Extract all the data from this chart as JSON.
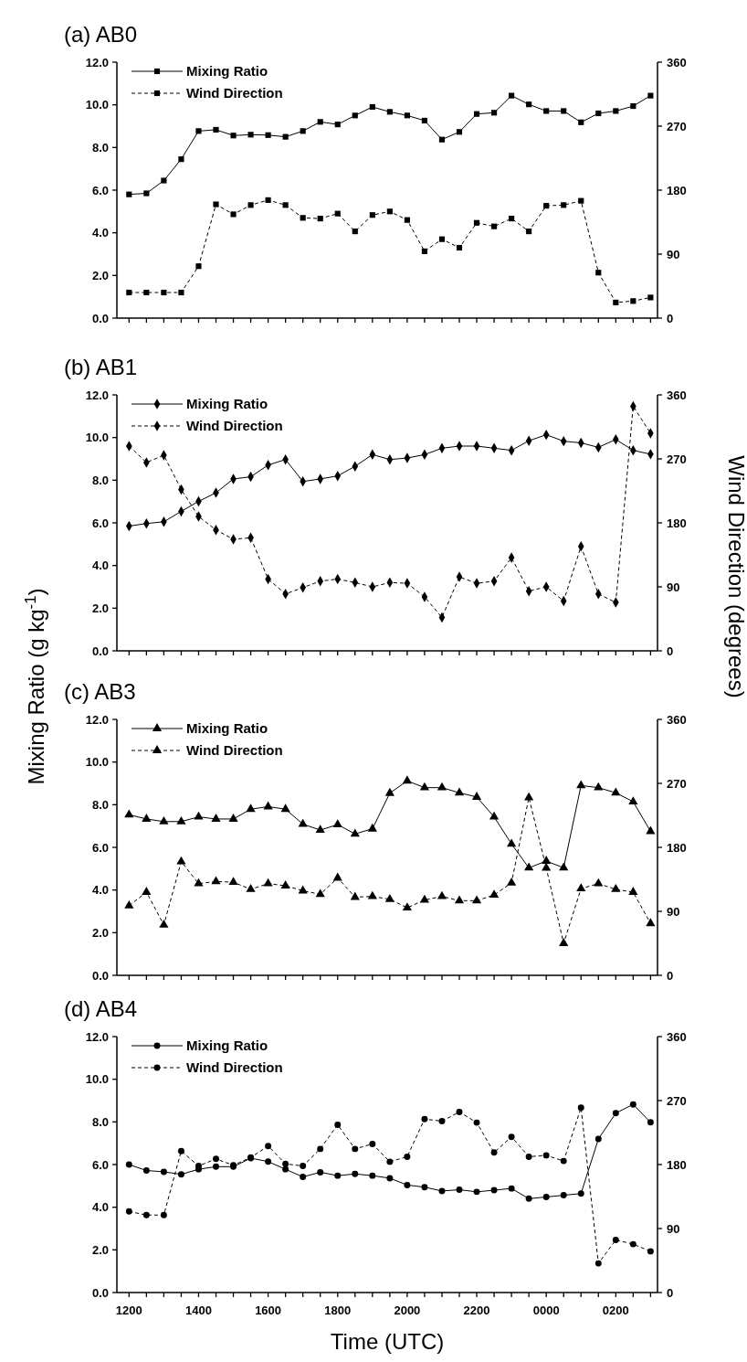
{
  "chart_data": [
    {
      "type": "line",
      "title": "(a) AB0",
      "marker": "square",
      "legend": "top left",
      "tick_labels": "y",
      "categories": [
        "1200",
        null,
        null,
        null,
        "1400",
        null,
        null,
        null,
        "1600",
        null,
        null,
        null,
        "1800",
        null,
        null,
        null,
        "2000",
        null,
        null,
        null,
        "2200",
        null,
        null,
        null,
        "0000",
        null,
        null,
        null,
        "0200",
        null,
        null
      ],
      "ylim": [
        0,
        12
      ],
      "yticks": [
        {
          "value": 0,
          "label": "0.0"
        },
        {
          "value": 2,
          "label": "2.0"
        },
        {
          "value": 4,
          "label": "4.0"
        },
        {
          "value": 6,
          "label": "6.0"
        },
        {
          "value": 8,
          "label": "8.0"
        },
        {
          "value": 10,
          "label": "10.0"
        },
        {
          "value": 12,
          "label": "12.0"
        }
      ],
      "y2lim": [
        0,
        360
      ],
      "y2ticks": [
        0,
        90,
        180,
        270,
        360
      ],
      "series": [
        {
          "name": "Mixing Ratio",
          "color": "#000000",
          "line_style": "solid",
          "values": [
            5.8,
            5.85,
            6.45,
            7.45,
            8.77,
            8.83,
            8.56,
            8.6,
            8.58,
            8.5,
            8.77,
            9.2,
            9.08,
            9.5,
            9.9,
            9.67,
            9.5,
            9.26,
            8.37,
            8.73,
            9.57,
            9.63,
            10.43,
            10.02,
            9.71,
            9.71,
            9.18,
            9.6,
            9.71,
            9.94,
            10.43
          ]
        },
        {
          "name": "Wind Direction",
          "color": "#000000",
          "line_style": "dashed",
          "axis": "y2",
          "values": [
            36,
            36,
            36,
            36,
            73,
            160,
            146,
            159,
            166,
            159,
            141,
            140,
            147,
            122,
            145,
            150,
            138,
            94,
            111,
            99,
            134,
            129,
            140,
            122,
            158,
            159,
            165,
            64,
            22,
            24,
            29
          ]
        }
      ]
    },
    {
      "type": "line",
      "title": "(b) AB1",
      "marker": "diamond",
      "legend": "top left",
      "tick_labels": "y",
      "ylabel": "Mixing Ratio (g kg$^{-1}$)",
      "y2label": "Wind Direction (degrees)",
      "categories": [
        "1200",
        null,
        null,
        null,
        "1400",
        null,
        null,
        null,
        "1600",
        null,
        null,
        null,
        "1800",
        null,
        null,
        null,
        "2000",
        null,
        null,
        null,
        "2200",
        null,
        null,
        null,
        "0000",
        null,
        null,
        null,
        "0200",
        null,
        null
      ],
      "ylim": [
        0,
        12
      ],
      "yticks": [
        {
          "value": 0,
          "label": "0.0"
        },
        {
          "value": 2,
          "label": "2.0"
        },
        {
          "value": 4,
          "label": "4.0"
        },
        {
          "value": 6,
          "label": "6.0"
        },
        {
          "value": 8,
          "label": "8.0"
        },
        {
          "value": 10,
          "label": "10.0"
        },
        {
          "value": 12,
          "label": "12.0"
        }
      ],
      "y2lim": [
        0,
        360
      ],
      "y2ticks": [
        0,
        90,
        180,
        270,
        360
      ],
      "series": [
        {
          "name": "Mixing Ratio",
          "color": "#000000",
          "line_style": "solid",
          "values": [
            5.85,
            5.97,
            6.05,
            6.54,
            7.01,
            7.41,
            8.06,
            8.16,
            8.71,
            8.97,
            7.94,
            8.06,
            8.2,
            8.65,
            9.2,
            8.97,
            9.04,
            9.2,
            9.5,
            9.6,
            9.6,
            9.5,
            9.4,
            9.85,
            10.13,
            9.83,
            9.75,
            9.54,
            9.91,
            9.4,
            9.22
          ]
        },
        {
          "name": "Wind Direction",
          "color": "#000000",
          "line_style": "dashed",
          "axis": "y2",
          "values": [
            288,
            265,
            275,
            227,
            189,
            170,
            157,
            159,
            101,
            80,
            89,
            98,
            101,
            96,
            90,
            96,
            95,
            76,
            47,
            104,
            95,
            98,
            131,
            84,
            90,
            70,
            147,
            80,
            68,
            344,
            306
          ]
        }
      ]
    },
    {
      "type": "line",
      "title": "(c) AB3",
      "marker": "triangle",
      "legend": "top left",
      "tick_labels": "y",
      "categories": [
        "1200",
        null,
        null,
        null,
        "1400",
        null,
        null,
        null,
        "1600",
        null,
        null,
        null,
        "1800",
        null,
        null,
        null,
        "2000",
        null,
        null,
        null,
        "2200",
        null,
        null,
        null,
        "0000",
        null,
        null,
        null,
        "0200",
        null,
        null
      ],
      "ylim": [
        0,
        12
      ],
      "yticks": [
        {
          "value": 0,
          "label": "0.0"
        },
        {
          "value": 2,
          "label": "2.0"
        },
        {
          "value": 4,
          "label": "4.0"
        },
        {
          "value": 6,
          "label": "6.0"
        },
        {
          "value": 8,
          "label": "8.0"
        },
        {
          "value": 10,
          "label": "10.0"
        },
        {
          "value": 12,
          "label": "12.0"
        }
      ],
      "y2lim": [
        0,
        360
      ],
      "y2ticks": [
        0,
        90,
        180,
        270,
        360
      ],
      "series": [
        {
          "name": "Mixing Ratio",
          "color": "#000000",
          "line_style": "solid",
          "values": [
            7.53,
            7.33,
            7.21,
            7.21,
            7.43,
            7.33,
            7.33,
            7.79,
            7.91,
            7.79,
            7.09,
            6.81,
            7.07,
            6.63,
            6.87,
            8.54,
            9.12,
            8.8,
            8.8,
            8.56,
            8.36,
            7.43,
            6.16,
            5.04,
            5.36,
            5.04,
            8.9,
            8.8,
            8.56,
            8.14,
            6.75
          ]
        },
        {
          "name": "Wind Direction",
          "color": "#000000",
          "line_style": "dashed",
          "axis": "y2",
          "values": [
            98,
            117,
            71,
            160,
            129,
            132,
            131,
            121,
            129,
            126,
            119,
            114,
            137,
            110,
            111,
            107,
            95,
            106,
            111,
            105,
            105,
            113,
            130,
            250,
            151,
            45,
            122,
            129,
            121,
            117,
            73
          ]
        }
      ]
    },
    {
      "type": "line",
      "title": "(d) AB4",
      "marker": "circle",
      "legend": "top left",
      "xlabel": "Time (UTC)",
      "categories": [
        "1200",
        null,
        null,
        null,
        "1400",
        null,
        null,
        null,
        "1600",
        null,
        null,
        null,
        "1800",
        null,
        null,
        null,
        "2000",
        null,
        null,
        null,
        "2200",
        null,
        null,
        null,
        "0000",
        null,
        null,
        null,
        "0200",
        null,
        null
      ],
      "ylim": [
        0,
        12
      ],
      "yticks": [
        {
          "value": 0,
          "label": "0.0"
        },
        {
          "value": 2,
          "label": "2.0"
        },
        {
          "value": 4,
          "label": "4.0"
        },
        {
          "value": 6,
          "label": "6.0"
        },
        {
          "value": 8,
          "label": "8.0"
        },
        {
          "value": 10,
          "label": "10.0"
        },
        {
          "value": 12,
          "label": "12.0"
        }
      ],
      "y2lim": [
        0,
        360
      ],
      "y2ticks": [
        0,
        90,
        180,
        270,
        360
      ],
      "series": [
        {
          "name": "Mixing Ratio",
          "color": "#000000",
          "line_style": "solid",
          "values": [
            6.0,
            5.72,
            5.66,
            5.54,
            5.78,
            5.9,
            5.9,
            6.3,
            6.14,
            5.78,
            5.42,
            5.64,
            5.48,
            5.56,
            5.48,
            5.36,
            5.04,
            4.94,
            4.76,
            4.82,
            4.72,
            4.8,
            4.88,
            4.4,
            4.48,
            4.56,
            4.64,
            7.2,
            8.41,
            8.82,
            7.98
          ]
        },
        {
          "name": "Wind Direction",
          "color": "#000000",
          "line_style": "dashed",
          "axis": "y2",
          "values": [
            114,
            109,
            109,
            199,
            178,
            188,
            179,
            190,
            206,
            181,
            178,
            202,
            236,
            202,
            209,
            184,
            191,
            244,
            241,
            254,
            239,
            197,
            219,
            191,
            193,
            185,
            260,
            41,
            74,
            68,
            58
          ]
        }
      ]
    }
  ]
}
